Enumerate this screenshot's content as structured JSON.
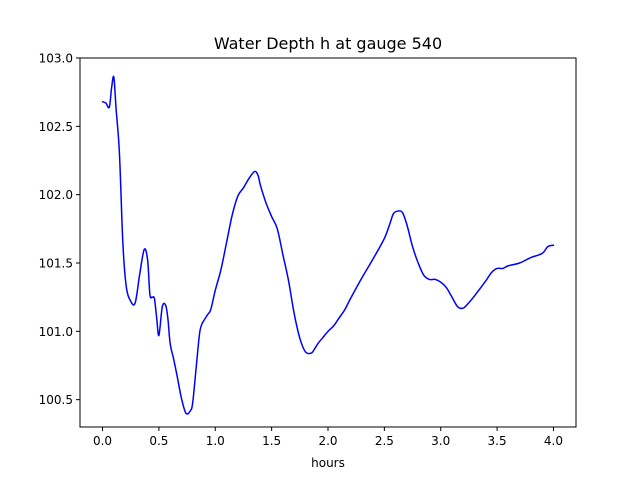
{
  "chart_data": {
    "type": "line",
    "title": "Water Depth h at gauge 540",
    "xlabel": "hours",
    "ylabel": "",
    "xlim": [
      -0.2,
      4.2
    ],
    "ylim": [
      100.3,
      103.0
    ],
    "xticks": [
      0.0,
      0.5,
      1.0,
      1.5,
      2.0,
      2.5,
      3.0,
      3.5,
      4.0
    ],
    "xtick_labels": [
      "0.0",
      "0.5",
      "1.0",
      "1.5",
      "2.0",
      "2.5",
      "3.0",
      "3.5",
      "4.0"
    ],
    "yticks": [
      100.5,
      101.0,
      101.5,
      102.0,
      102.5,
      103.0
    ],
    "ytick_labels": [
      "100.5",
      "101.0",
      "101.5",
      "102.0",
      "102.5",
      "103.0"
    ],
    "grid": false,
    "series": [
      {
        "name": "",
        "color": "#0000ff",
        "x": [
          0.0,
          0.03,
          0.06,
          0.08,
          0.1,
          0.12,
          0.15,
          0.18,
          0.21,
          0.25,
          0.29,
          0.33,
          0.37,
          0.4,
          0.42,
          0.44,
          0.46,
          0.48,
          0.5,
          0.53,
          0.56,
          0.58,
          0.6,
          0.63,
          0.66,
          0.7,
          0.74,
          0.78,
          0.8,
          0.83,
          0.86,
          0.88,
          0.9,
          0.93,
          0.96,
          1.0,
          1.05,
          1.1,
          1.15,
          1.2,
          1.25,
          1.3,
          1.35,
          1.38,
          1.4,
          1.45,
          1.5,
          1.55,
          1.6,
          1.65,
          1.7,
          1.75,
          1.8,
          1.85,
          1.88,
          1.91,
          1.95,
          2.0,
          2.05,
          2.1,
          2.15,
          2.2,
          2.3,
          2.4,
          2.5,
          2.55,
          2.58,
          2.62,
          2.66,
          2.7,
          2.75,
          2.8,
          2.85,
          2.9,
          2.95,
          3.0,
          3.05,
          3.1,
          3.15,
          3.2,
          3.25,
          3.3,
          3.4,
          3.45,
          3.5,
          3.55,
          3.6,
          3.7,
          3.8,
          3.9,
          3.95,
          4.0
        ],
        "y": [
          102.68,
          102.67,
          102.64,
          102.78,
          102.86,
          102.63,
          102.3,
          101.65,
          101.33,
          101.22,
          101.21,
          101.42,
          101.6,
          101.52,
          101.27,
          101.25,
          101.24,
          101.1,
          100.97,
          101.18,
          101.19,
          101.09,
          100.91,
          100.8,
          100.68,
          100.51,
          100.4,
          100.42,
          100.48,
          100.73,
          100.98,
          101.05,
          101.08,
          101.12,
          101.16,
          101.3,
          101.45,
          101.65,
          101.85,
          101.99,
          102.05,
          102.12,
          102.17,
          102.14,
          102.07,
          101.94,
          101.84,
          101.75,
          101.56,
          101.37,
          101.13,
          100.95,
          100.85,
          100.84,
          100.87,
          100.91,
          100.95,
          101.0,
          101.04,
          101.1,
          101.16,
          101.24,
          101.39,
          101.53,
          101.68,
          101.79,
          101.86,
          101.88,
          101.87,
          101.78,
          101.62,
          101.5,
          101.41,
          101.38,
          101.38,
          101.36,
          101.32,
          101.25,
          101.18,
          101.17,
          101.21,
          101.26,
          101.37,
          101.43,
          101.46,
          101.46,
          101.48,
          101.5,
          101.54,
          101.57,
          101.62,
          101.63
        ]
      }
    ]
  }
}
